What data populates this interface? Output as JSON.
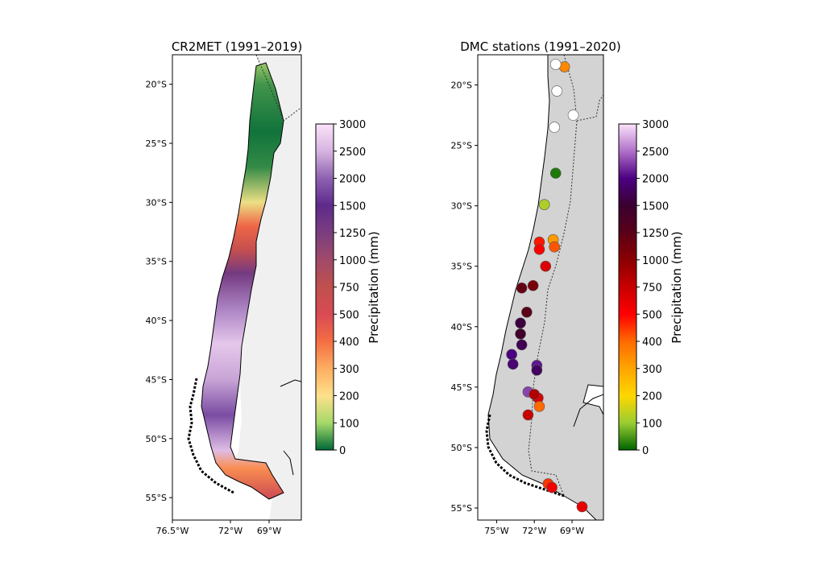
{
  "chart_data": [
    {
      "type": "heatmap",
      "title": "CR2MET (1991–2019)",
      "xlabel": "",
      "ylabel": "",
      "x_ticks": [
        "76.5°W",
        "72°W",
        "69°W"
      ],
      "x_tick_values": [
        -76.5,
        -72,
        -69
      ],
      "y_ticks": [
        "20°S",
        "25°S",
        "30°S",
        "35°S",
        "40°S",
        "45°S",
        "50°S",
        "55°S"
      ],
      "y_tick_values": [
        -20,
        -25,
        -30,
        -35,
        -40,
        -45,
        -50,
        -55
      ],
      "xlim": [
        -76.5,
        -66.5
      ],
      "ylim": [
        -56.9,
        -17.5
      ],
      "grid": false,
      "background_ocean": "#ffffff",
      "background_land": "#f0f0f0",
      "colorbar": {
        "label": "Precipitation (mm)",
        "ticks": [
          "0",
          "100",
          "200",
          "300",
          "400",
          "500",
          "750",
          "1000",
          "1250",
          "1500",
          "2000",
          "2500",
          "3000"
        ],
        "tick_values": [
          0,
          100,
          200,
          300,
          400,
          500,
          750,
          1000,
          1250,
          1500,
          2000,
          2500,
          3000
        ],
        "colors": [
          "#006837",
          "#a6d96a",
          "#fee08b",
          "#fdae61",
          "#f46d43",
          "#d94a55",
          "#c0504d",
          "#a04a6a",
          "#7a3e7e",
          "#5e2a8c",
          "#8d62b0",
          "#d7b4e0",
          "#fbe3fb"
        ]
      },
      "profile": [
        {
          "lat": -17.5,
          "value": 120
        },
        {
          "lat": -20,
          "value": 40
        },
        {
          "lat": -24,
          "value": 10
        },
        {
          "lat": -27,
          "value": 30
        },
        {
          "lat": -30,
          "value": 180
        },
        {
          "lat": -32,
          "value": 420
        },
        {
          "lat": -34,
          "value": 700
        },
        {
          "lat": -36,
          "value": 1300
        },
        {
          "lat": -39,
          "value": 2200
        },
        {
          "lat": -42,
          "value": 2700
        },
        {
          "lat": -45,
          "value": 2400
        },
        {
          "lat": -48,
          "value": 1800
        },
        {
          "lat": -51,
          "value": 2600
        },
        {
          "lat": -52.5,
          "value": 350
        },
        {
          "lat": -55,
          "value": 600
        }
      ]
    },
    {
      "type": "scatter",
      "title": "DMC stations (1991–2020)",
      "xlabel": "",
      "ylabel": "",
      "x_ticks": [
        "75°W",
        "72°W",
        "69°W"
      ],
      "x_tick_values": [
        -75,
        -72,
        -69
      ],
      "y_ticks": [
        "20°S",
        "25°S",
        "30°S",
        "35°S",
        "40°S",
        "45°S",
        "50°S",
        "55°S"
      ],
      "y_tick_values": [
        -20,
        -25,
        -30,
        -35,
        -40,
        -45,
        -50,
        -55
      ],
      "xlim": [
        -76.5,
        -66.5
      ],
      "ylim": [
        -56.0,
        -17.5
      ],
      "grid": false,
      "background_land": "#d3d3d3",
      "background_ocean": "#ffffff",
      "colorbar": {
        "label": "Precipitation (mm)",
        "ticks": [
          "0",
          "100",
          "200",
          "300",
          "400",
          "500",
          "750",
          "1000",
          "1250",
          "1500",
          "2000",
          "2500",
          "3000"
        ],
        "tick_values": [
          0,
          100,
          200,
          300,
          400,
          500,
          750,
          1000,
          1250,
          1500,
          2000,
          2500,
          3000
        ],
        "colors": [
          "#006400",
          "#9acd32",
          "#ffd700",
          "#ffa500",
          "#ff6a00",
          "#ff0000",
          "#c80000",
          "#8b0000",
          "#5a0018",
          "#3a0030",
          "#4b0082",
          "#b070c8",
          "#fbe3fb"
        ]
      },
      "points": [
        {
          "lon": -69.6,
          "lat": -18.5,
          "value": 350
        },
        {
          "lon": -70.3,
          "lat": -18.3,
          "value": 0
        },
        {
          "lon": -70.2,
          "lat": -20.5,
          "value": 0
        },
        {
          "lon": -68.9,
          "lat": -22.5,
          "value": 0
        },
        {
          "lon": -70.4,
          "lat": -23.5,
          "value": 0
        },
        {
          "lon": -70.3,
          "lat": -27.3,
          "value": 20
        },
        {
          "lon": -71.2,
          "lat": -29.9,
          "value": 120
        },
        {
          "lon": -70.5,
          "lat": -32.8,
          "value": 320
        },
        {
          "lon": -71.6,
          "lat": -33.0,
          "value": 480
        },
        {
          "lon": -70.4,
          "lat": -33.4,
          "value": 420
        },
        {
          "lon": -71.6,
          "lat": -33.6,
          "value": 520
        },
        {
          "lon": -71.1,
          "lat": -35.0,
          "value": 650
        },
        {
          "lon": -72.1,
          "lat": -36.6,
          "value": 1100
        },
        {
          "lon": -73.0,
          "lat": -36.8,
          "value": 1200
        },
        {
          "lon": -72.6,
          "lat": -38.8,
          "value": 1250
        },
        {
          "lon": -73.1,
          "lat": -39.7,
          "value": 1600
        },
        {
          "lon": -73.1,
          "lat": -40.6,
          "value": 1450
        },
        {
          "lon": -73.0,
          "lat": -41.5,
          "value": 1700
        },
        {
          "lon": -73.8,
          "lat": -42.3,
          "value": 2000
        },
        {
          "lon": -73.7,
          "lat": -43.1,
          "value": 1900
        },
        {
          "lon": -71.8,
          "lat": -43.2,
          "value": 2100
        },
        {
          "lon": -71.8,
          "lat": -43.6,
          "value": 1800
        },
        {
          "lon": -72.5,
          "lat": -45.4,
          "value": 2300
        },
        {
          "lon": -71.7,
          "lat": -45.9,
          "value": 650
        },
        {
          "lon": -72.0,
          "lat": -45.6,
          "value": 850
        },
        {
          "lon": -71.6,
          "lat": -46.6,
          "value": 400
        },
        {
          "lon": -72.5,
          "lat": -47.3,
          "value": 750
        },
        {
          "lon": -70.9,
          "lat": -53.0,
          "value": 450
        },
        {
          "lon": -70.6,
          "lat": -53.3,
          "value": 550
        },
        {
          "lon": -68.2,
          "lat": -54.9,
          "value": 600
        }
      ]
    }
  ]
}
